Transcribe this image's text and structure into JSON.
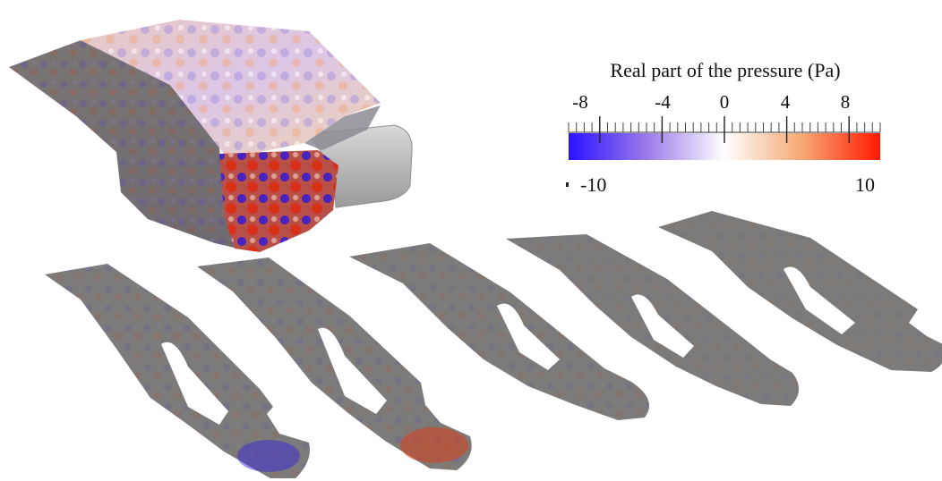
{
  "legend": {
    "title": "Real part of the pressure (Pa)",
    "ticks": [
      "-8",
      "-4",
      "0",
      "4",
      "8"
    ],
    "tick_values": [
      -8,
      -4,
      0,
      4,
      8
    ],
    "min_label": "-10",
    "max_label": "10",
    "min": -10,
    "max": 10,
    "colormap": [
      "#2a12ff",
      "#9a7ae8",
      "#ffffff",
      "#f5a873",
      "#ff1a00"
    ]
  },
  "model": {
    "colors": {
      "neutral": "#7d7c79",
      "blue": "#3a2ad8",
      "red": "#d8401a"
    }
  }
}
